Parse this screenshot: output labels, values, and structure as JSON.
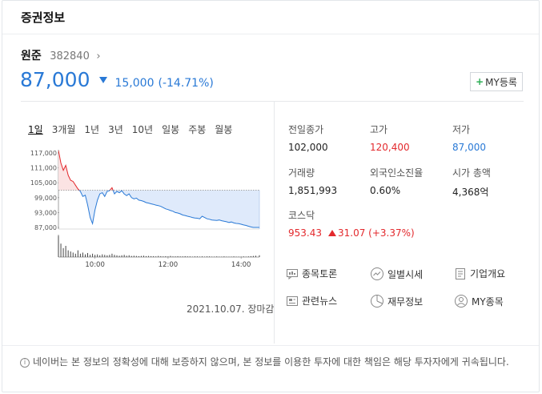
{
  "header": {
    "title": "증권정보"
  },
  "stock": {
    "name": "원준",
    "code": "382840",
    "chevron": "›",
    "price": "87,000",
    "change": "15,000",
    "change_pct": "(-14.71%)",
    "my_button": "MY등록",
    "my_plus": "+"
  },
  "tabs": [
    "1일",
    "3개월",
    "1년",
    "3년",
    "10년",
    "일봉",
    "주봉",
    "월봉"
  ],
  "chart_data": {
    "type": "line",
    "y_ticks": [
      "117,000",
      "111,000",
      "105,000",
      "99,000",
      "93,000",
      "87,000"
    ],
    "x_ticks": [
      "10:00",
      "12:00",
      "14:00"
    ],
    "ylim": [
      87000,
      117000
    ],
    "prev_close": 102000,
    "x_minutes_from_open": [
      0,
      4,
      8,
      12,
      16,
      20,
      24,
      28,
      32,
      36,
      40,
      44,
      48,
      52,
      56,
      60,
      64,
      68,
      72,
      76,
      80,
      84,
      88,
      92,
      96,
      100,
      104,
      108,
      112,
      116,
      120,
      124,
      128,
      132,
      136,
      140,
      144,
      148,
      152,
      156,
      160,
      164,
      168,
      172,
      176,
      180,
      184,
      188,
      192,
      196,
      200,
      204,
      208,
      212,
      216,
      220,
      224,
      228,
      232,
      236,
      240,
      244,
      248,
      252,
      256,
      260,
      264,
      268,
      272,
      276,
      280,
      284,
      288,
      292,
      296,
      300,
      304,
      308,
      312,
      316,
      320,
      324,
      330
    ],
    "values": [
      118000,
      113000,
      110000,
      112000,
      108000,
      106000,
      105500,
      104000,
      102500,
      101500,
      99500,
      100000,
      96000,
      91000,
      88500,
      94000,
      98000,
      100500,
      101000,
      99500,
      101500,
      101800,
      103000,
      100500,
      101500,
      101000,
      101800,
      100500,
      99800,
      100500,
      99000,
      98500,
      98800,
      98000,
      97800,
      97500,
      97000,
      96800,
      96500,
      96300,
      96000,
      95800,
      95500,
      95000,
      94500,
      94200,
      93800,
      93500,
      93000,
      92800,
      92500,
      92000,
      91800,
      91500,
      91300,
      91000,
      90800,
      90700,
      90500,
      91500,
      91000,
      90500,
      90300,
      90000,
      89900,
      89800,
      90000,
      89700,
      89500,
      89300,
      89000,
      89200,
      88800,
      88600,
      88500,
      88300,
      88000,
      87800,
      87500,
      87200,
      87000,
      87000,
      87000
    ],
    "volume_bars": [
      0.95,
      0.6,
      0.4,
      0.5,
      0.3,
      0.25,
      0.2,
      0.15,
      0.3,
      0.15,
      0.2,
      0.12,
      0.18,
      0.1,
      0.15,
      0.1,
      0.12,
      0.08,
      0.12,
      0.1,
      0.08,
      0.1,
      0.15,
      0.1,
      0.08,
      0.06,
      0.08,
      0.1,
      0.06,
      0.08,
      0.05,
      0.06,
      0.05,
      0.04,
      0.05,
      0.06,
      0.04,
      0.05,
      0.04,
      0.04,
      0.03,
      0.05,
      0.04,
      0.03,
      0.04,
      0.03,
      0.05,
      0.03,
      0.03,
      0.04,
      0.03,
      0.03,
      0.04,
      0.03,
      0.03,
      0.02,
      0.03,
      0.03,
      0.02,
      0.03,
      0.02,
      0.03,
      0.03,
      0.02,
      0.02,
      0.03,
      0.02,
      0.02,
      0.03,
      0.02,
      0.02,
      0.02,
      0.03,
      0.02,
      0.02,
      0.02,
      0.03,
      0.02,
      0.03,
      0.04,
      0.05,
      0.06,
      0.08
    ],
    "colors": {
      "up": "#e3292d",
      "down": "#2979d6",
      "up_fill": "#fbe3e3",
      "down_fill": "#dfeafb"
    }
  },
  "chart_date": "2021.10.07. 장마감",
  "stats": [
    {
      "label": "전일종가",
      "value": "102,000",
      "color": ""
    },
    {
      "label": "고가",
      "value": "120,400",
      "color": "red"
    },
    {
      "label": "저가",
      "value": "87,000",
      "color": "blue"
    },
    {
      "label": "거래량",
      "value": "1,851,993",
      "color": ""
    },
    {
      "label": "외국인소진율",
      "value": "0.60%",
      "color": ""
    },
    {
      "label": "시가 총액",
      "value": "4,368억",
      "color": ""
    }
  ],
  "kosdaq": {
    "label": "코스닥",
    "value": "953.43",
    "change": "31.07 (+3.37%)"
  },
  "links": [
    {
      "label": "종목토론",
      "icon": "chat-icon"
    },
    {
      "label": "일별시세",
      "icon": "trend-icon"
    },
    {
      "label": "기업개요",
      "icon": "document-icon"
    },
    {
      "label": "관련뉴스",
      "icon": "news-icon"
    },
    {
      "label": "재무정보",
      "icon": "clock-icon"
    },
    {
      "label": "MY종목",
      "icon": "user-icon"
    }
  ],
  "footer": {
    "info_icon": "i",
    "notice": "네이버는 본 정보의 정확성에 대해 보증하지 않으며, 본 정보를 이용한 투자에 대한 책임은 해당 투자자에게 귀속됩니다."
  }
}
